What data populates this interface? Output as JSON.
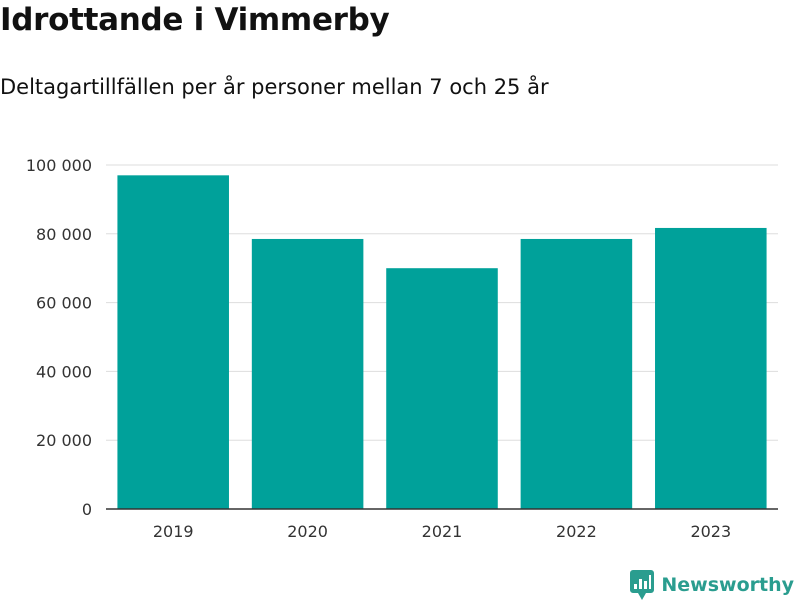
{
  "title": "Idrottande i Vimmerby",
  "subtitle": "Deltagartillfällen per år personer mellan 7 och 25 år",
  "brand": {
    "name": "Newsworthy",
    "icon": "newsworthy-logo-icon",
    "color": "#2a9d8f"
  },
  "chart_data": {
    "type": "bar",
    "categories": [
      "2019",
      "2020",
      "2021",
      "2022",
      "2023"
    ],
    "values": [
      97000,
      78500,
      70000,
      78500,
      81700
    ],
    "yticks": [
      0,
      20000,
      40000,
      60000,
      80000,
      100000
    ],
    "ytick_labels": [
      "0",
      "20 000",
      "40 000",
      "60 000",
      "80 000",
      "100 000"
    ],
    "ylim": [
      0,
      100000
    ],
    "bar_color": "#00a19a",
    "grid": true,
    "xlabel": "",
    "ylabel": ""
  }
}
